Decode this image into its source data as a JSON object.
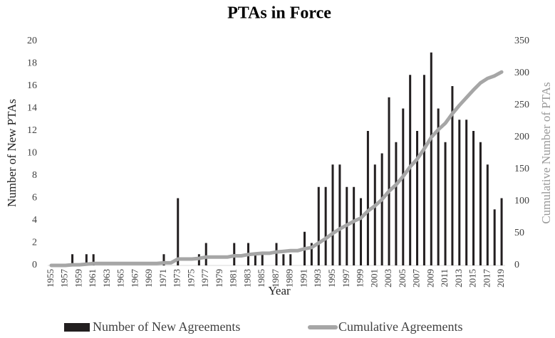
{
  "chart_data": {
    "type": "bar_line",
    "title": "PTAs in Force",
    "x_label": "Year",
    "y_label": "Number of New PTAs",
    "y2_label": "Cumulative Number of PTAs",
    "categories": [
      "1955",
      null,
      "1957",
      null,
      "1959",
      null,
      "1961",
      null,
      "1963",
      null,
      "1965",
      null,
      "1967",
      null,
      "1969",
      null,
      "1971",
      null,
      "1973",
      null,
      "1975",
      null,
      "1977",
      null,
      "1979",
      null,
      "1981",
      null,
      "1983",
      null,
      "1985",
      null,
      "1987",
      null,
      "1989",
      null,
      "1991",
      null,
      "1993",
      null,
      "1995",
      null,
      "1997",
      null,
      "1999",
      null,
      "2001",
      null,
      "2003",
      null,
      "2005",
      null,
      "2007",
      null,
      "2009",
      null,
      "2011",
      null,
      "2013",
      null,
      "2015",
      null,
      "2017",
      null,
      "2019"
    ],
    "series": [
      {
        "name": "Number of New Agreements",
        "color": "#231f20",
        "type": "bar",
        "values": [
          0,
          0,
          0,
          1,
          0,
          1,
          1,
          0,
          0,
          0,
          0,
          0,
          0,
          0,
          0,
          0,
          1,
          0,
          6,
          0,
          0,
          1,
          2,
          0,
          0,
          0,
          2,
          0,
          2,
          1,
          1,
          0,
          2,
          1,
          1,
          0,
          3,
          2,
          7,
          7,
          9,
          9,
          7,
          7,
          6,
          12,
          9,
          10,
          15,
          11,
          14,
          17,
          12,
          17,
          19,
          14,
          11,
          16,
          13,
          13,
          12,
          11,
          9,
          5,
          6
        ]
      },
      {
        "name": "Cumulative Agreements",
        "color": "#a6a6a6",
        "type": "line",
        "axis": "y2",
        "values": [
          0,
          0,
          0,
          1,
          1,
          2,
          3,
          3,
          3,
          3,
          3,
          3,
          3,
          3,
          3,
          3,
          4,
          4,
          10,
          10,
          10,
          11,
          13,
          13,
          13,
          13,
          15,
          15,
          17,
          18,
          19,
          19,
          21,
          22,
          23,
          23,
          26,
          28,
          35,
          42,
          50,
          57,
          63,
          69,
          74,
          85,
          93,
          103,
          116,
          126,
          139,
          154,
          166,
          182,
          200,
          212,
          222,
          237,
          250,
          262,
          274,
          285,
          292,
          296,
          302
        ]
      }
    ],
    "ylim": [
      0,
      20
    ],
    "yticks": [
      0,
      2,
      4,
      6,
      8,
      10,
      12,
      14,
      16,
      18,
      20
    ],
    "y2lim": [
      0,
      350
    ],
    "y2ticks": [
      0,
      50,
      100,
      150,
      200,
      250,
      300,
      350
    ],
    "grid": false,
    "legend": "bottom"
  }
}
